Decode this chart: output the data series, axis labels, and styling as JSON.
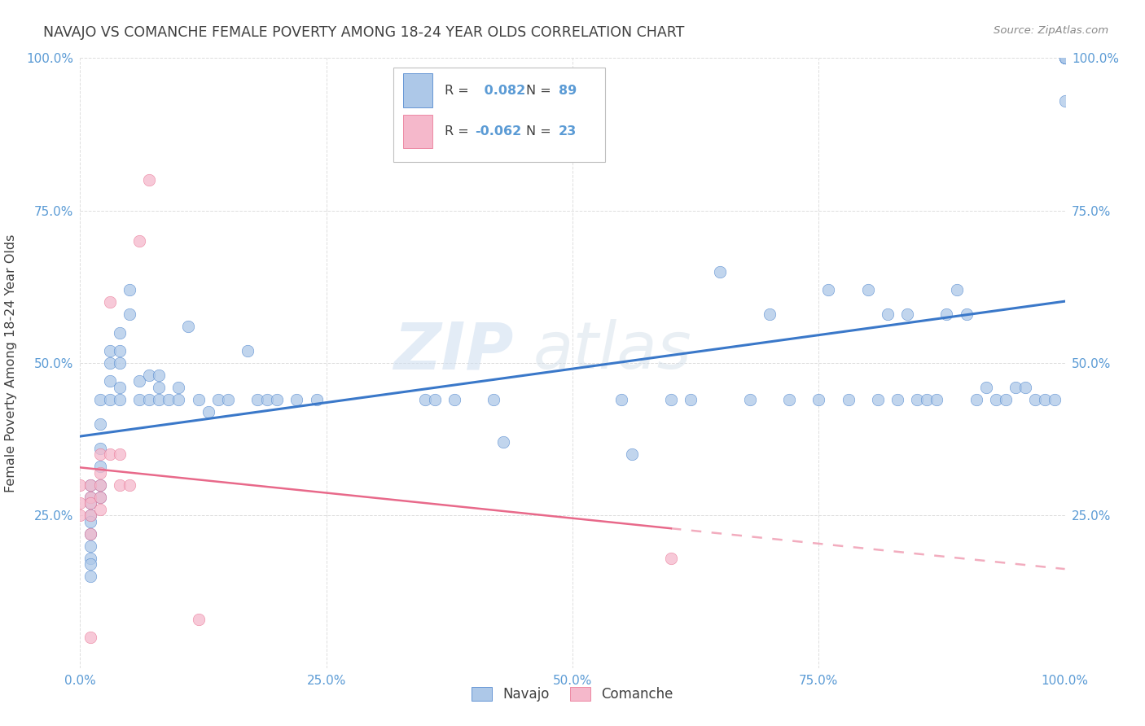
{
  "title": "NAVAJO VS COMANCHE FEMALE POVERTY AMONG 18-24 YEAR OLDS CORRELATION CHART",
  "source": "Source: ZipAtlas.com",
  "ylabel": "Female Poverty Among 18-24 Year Olds",
  "navajo_R": 0.082,
  "navajo_N": 89,
  "comanche_R": -0.062,
  "comanche_N": 23,
  "navajo_color": "#adc8e8",
  "comanche_color": "#f5b8cb",
  "navajo_line_color": "#3a78c9",
  "comanche_line_color": "#e8698a",
  "watermark_zip": "ZIP",
  "watermark_atlas": "atlas",
  "navajo_x": [
    0.01,
    0.01,
    0.01,
    0.01,
    0.01,
    0.01,
    0.01,
    0.01,
    0.01,
    0.01,
    0.02,
    0.02,
    0.02,
    0.02,
    0.02,
    0.02,
    0.03,
    0.03,
    0.03,
    0.03,
    0.04,
    0.04,
    0.04,
    0.04,
    0.04,
    0.05,
    0.05,
    0.06,
    0.06,
    0.07,
    0.07,
    0.08,
    0.08,
    0.08,
    0.09,
    0.1,
    0.1,
    0.11,
    0.12,
    0.13,
    0.14,
    0.15,
    0.17,
    0.18,
    0.19,
    0.2,
    0.22,
    0.24,
    0.35,
    0.36,
    0.38,
    0.42,
    0.43,
    0.55,
    0.56,
    0.6,
    0.62,
    0.65,
    0.68,
    0.7,
    0.72,
    0.75,
    0.76,
    0.78,
    0.8,
    0.81,
    0.82,
    0.83,
    0.84,
    0.85,
    0.86,
    0.87,
    0.88,
    0.89,
    0.9,
    0.91,
    0.92,
    0.93,
    0.94,
    0.95,
    0.96,
    0.97,
    0.98,
    0.99,
    1.0,
    1.0,
    1.0,
    1.0,
    1.0
  ],
  "navajo_y": [
    0.28,
    0.3,
    0.27,
    0.25,
    0.24,
    0.22,
    0.2,
    0.18,
    0.17,
    0.15,
    0.28,
    0.3,
    0.33,
    0.36,
    0.4,
    0.44,
    0.44,
    0.47,
    0.5,
    0.52,
    0.44,
    0.46,
    0.5,
    0.52,
    0.55,
    0.58,
    0.62,
    0.44,
    0.47,
    0.44,
    0.48,
    0.44,
    0.46,
    0.48,
    0.44,
    0.44,
    0.46,
    0.56,
    0.44,
    0.42,
    0.44,
    0.44,
    0.52,
    0.44,
    0.44,
    0.44,
    0.44,
    0.44,
    0.44,
    0.44,
    0.44,
    0.44,
    0.37,
    0.44,
    0.35,
    0.44,
    0.44,
    0.65,
    0.44,
    0.58,
    0.44,
    0.44,
    0.62,
    0.44,
    0.62,
    0.44,
    0.58,
    0.44,
    0.58,
    0.44,
    0.44,
    0.44,
    0.58,
    0.62,
    0.58,
    0.44,
    0.46,
    0.44,
    0.44,
    0.46,
    0.46,
    0.44,
    0.44,
    0.44,
    0.93,
    1.0,
    1.0,
    1.0,
    1.0
  ],
  "comanche_x": [
    0.0,
    0.0,
    0.0,
    0.01,
    0.01,
    0.01,
    0.01,
    0.01,
    0.01,
    0.02,
    0.02,
    0.02,
    0.02,
    0.02,
    0.03,
    0.03,
    0.04,
    0.04,
    0.05,
    0.06,
    0.07,
    0.12,
    0.6
  ],
  "comanche_y": [
    0.3,
    0.27,
    0.25,
    0.3,
    0.28,
    0.27,
    0.25,
    0.22,
    0.05,
    0.35,
    0.32,
    0.3,
    0.28,
    0.26,
    0.6,
    0.35,
    0.35,
    0.3,
    0.3,
    0.7,
    0.8,
    0.08,
    0.18
  ],
  "xlim": [
    0.0,
    1.0
  ],
  "ylim": [
    0.0,
    1.0
  ],
  "xticks": [
    0.0,
    0.25,
    0.5,
    0.75,
    1.0
  ],
  "yticks": [
    0.25,
    0.5,
    0.75,
    1.0
  ],
  "xticklabels": [
    "0.0%",
    "25.0%",
    "50.0%",
    "75.0%",
    "100.0%"
  ],
  "left_yticklabels": [
    "25.0%",
    "50.0%",
    "75.0%",
    "100.0%"
  ],
  "right_yticklabels": [
    "25.0%",
    "50.0%",
    "75.0%",
    "100.0%"
  ],
  "background_color": "#ffffff",
  "grid_color": "#dddddd",
  "tick_color": "#5b9bd5",
  "title_color": "#404040",
  "ylabel_color": "#404040",
  "source_color": "#888888"
}
